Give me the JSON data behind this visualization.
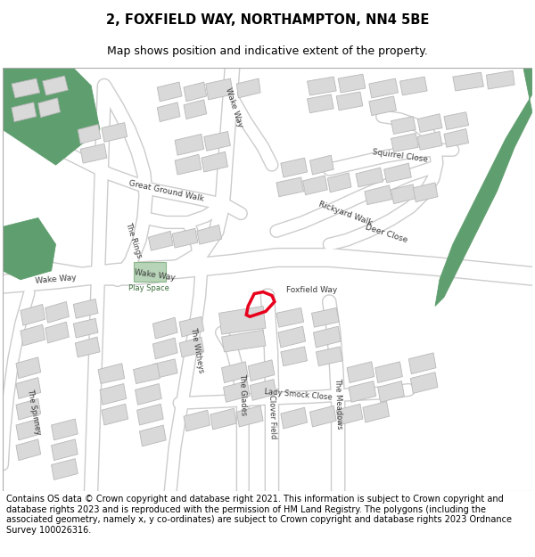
{
  "title": "2, FOXFIELD WAY, NORTHAMPTON, NN4 5BE",
  "subtitle": "Map shows position and indicative extent of the property.",
  "footer": "Contains OS data © Crown copyright and database right 2021. This information is subject to Crown copyright and database rights 2023 and is reproduced with the permission of HM Land Registry. The polygons (including the associated geometry, namely x, y co-ordinates) are subject to Crown copyright and database rights 2023 Ordnance Survey 100026316.",
  "map_bg": "#f2f2f2",
  "building_color": "#d9d9d9",
  "building_outline": "#b8b8b8",
  "green_color": "#5f9e6e",
  "green_light": "#c8dfc8",
  "red_outline": "#e8001c",
  "road_color": "#ffffff",
  "road_edge": "#cccccc",
  "title_fontsize": 10.5,
  "subtitle_fontsize": 9,
  "footer_fontsize": 7.0
}
